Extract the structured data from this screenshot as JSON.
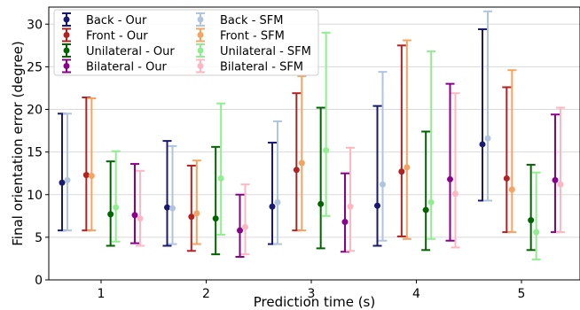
{
  "chart_data": {
    "type": "errorbar",
    "xlabel": "Prediction time (s)",
    "ylabel": "Final orientation error (degree)",
    "categories": [
      "1",
      "2",
      "3",
      "4",
      "5"
    ],
    "ylim": [
      0,
      32
    ],
    "yticks": [
      0,
      5,
      10,
      15,
      20,
      25,
      30
    ],
    "grid": "horizontal",
    "legend_position": "top-left",
    "series": [
      {
        "name": "Back - Our",
        "color": "#191970",
        "mean": [
          11.4,
          8.5,
          8.6,
          8.7,
          15.9
        ],
        "lower": [
          5.8,
          4.0,
          4.2,
          4.0,
          9.3
        ],
        "upper": [
          19.5,
          16.3,
          16.1,
          20.4,
          29.4
        ]
      },
      {
        "name": "Front - Our",
        "color": "#B22222",
        "mean": [
          12.3,
          7.4,
          12.9,
          12.7,
          11.9
        ],
        "lower": [
          5.8,
          3.4,
          5.8,
          5.1,
          5.6
        ],
        "upper": [
          21.4,
          13.4,
          21.9,
          27.5,
          22.6
        ]
      },
      {
        "name": "Unilateral - Our",
        "color": "#006400",
        "mean": [
          7.7,
          7.2,
          8.9,
          8.2,
          7.0
        ],
        "lower": [
          4.0,
          3.0,
          3.7,
          3.5,
          3.5
        ],
        "upper": [
          13.9,
          15.6,
          20.2,
          17.4,
          13.5
        ]
      },
      {
        "name": "Bilateral - Our",
        "color": "#8B008B",
        "mean": [
          7.6,
          5.8,
          6.8,
          11.8,
          11.7
        ],
        "lower": [
          4.3,
          2.7,
          3.3,
          4.6,
          5.6
        ],
        "upper": [
          13.6,
          10.0,
          12.5,
          23.0,
          19.4
        ]
      },
      {
        "name": "Back - SFM",
        "color": "#B0C4DE",
        "mean": [
          11.7,
          8.4,
          9.1,
          11.2,
          16.6
        ],
        "lower": [
          5.8,
          4.2,
          4.2,
          4.6,
          9.3
        ],
        "upper": [
          19.5,
          15.7,
          18.6,
          24.4,
          31.5
        ]
      },
      {
        "name": "Front - SFM",
        "color": "#F4A460",
        "mean": [
          12.2,
          7.8,
          13.7,
          13.2,
          10.6
        ],
        "lower": [
          5.8,
          4.2,
          5.8,
          4.8,
          5.6
        ],
        "upper": [
          21.3,
          14.0,
          23.9,
          28.1,
          24.6
        ]
      },
      {
        "name": "Unilateral - SFM",
        "color": "#90EE90",
        "mean": [
          8.5,
          11.9,
          15.2,
          9.1,
          5.6
        ],
        "lower": [
          4.5,
          5.3,
          7.5,
          4.8,
          2.4
        ],
        "upper": [
          15.1,
          20.7,
          29.0,
          26.8,
          12.6
        ]
      },
      {
        "name": "Bilateral - SFM",
        "color": "#FFB6C1",
        "mean": [
          7.2,
          6.2,
          8.6,
          10.1,
          11.2
        ],
        "lower": [
          4.0,
          3.0,
          3.4,
          3.8,
          5.6
        ],
        "upper": [
          12.8,
          11.2,
          15.5,
          21.9,
          20.2
        ]
      }
    ]
  }
}
